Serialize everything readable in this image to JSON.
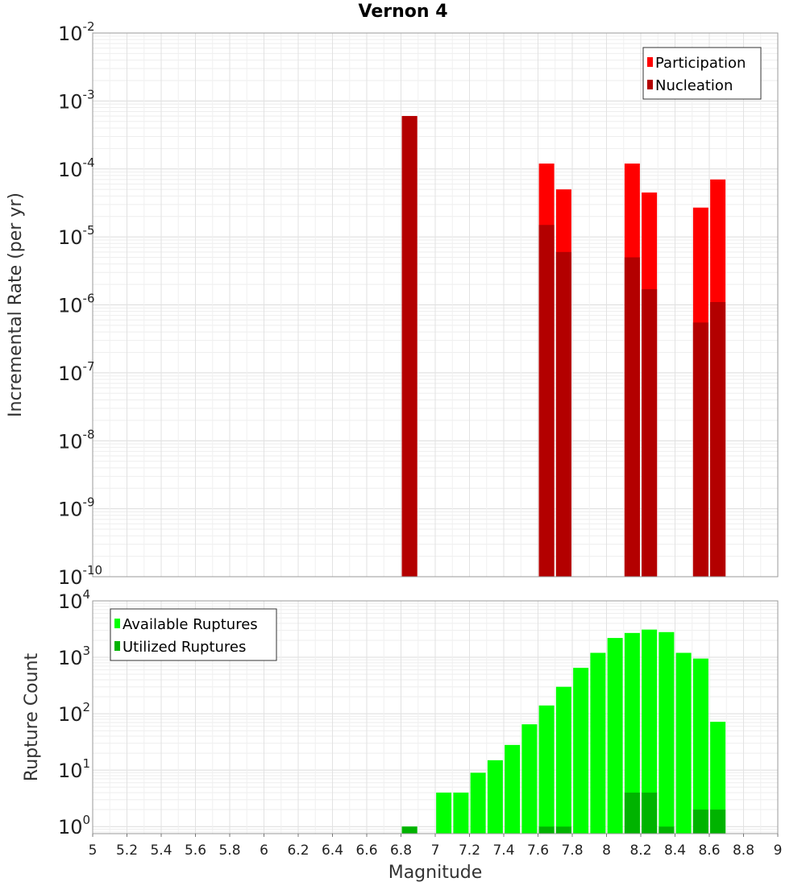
{
  "title": "Vernon 4",
  "chart_data": [
    {
      "type": "bar",
      "panel": "top",
      "title": "Vernon 4",
      "xlabel": "Magnitude",
      "ylabel": "Incremental Rate (per yr)",
      "y_scale": "log",
      "ylim": [
        1e-10,
        0.01
      ],
      "xlim": [
        5,
        9
      ],
      "y_tick_exponents": [
        -10,
        -9,
        -8,
        -7,
        -6,
        -5,
        -4,
        -3,
        -2
      ],
      "grid": true,
      "legend_position": "top-right",
      "legend": [
        "Participation",
        "Nucleation"
      ],
      "colors": {
        "Participation": "#ff0000",
        "Nucleation": "#b30000"
      },
      "x": [
        6.85,
        7.65,
        7.75,
        8.15,
        8.25,
        8.55,
        8.65
      ],
      "series": [
        {
          "name": "Participation",
          "values": [
            0.0006,
            0.00012,
            5e-05,
            0.00012,
            4.5e-05,
            2.7e-05,
            7e-05
          ]
        },
        {
          "name": "Nucleation",
          "values": [
            0.0006,
            1.5e-05,
            6e-06,
            5e-06,
            1.7e-06,
            5.5e-07,
            1.1e-06
          ]
        }
      ]
    },
    {
      "type": "bar",
      "panel": "bottom",
      "xlabel": "Magnitude",
      "ylabel": "Rupture Count",
      "y_scale": "log",
      "ylim": [
        0.75,
        10000
      ],
      "xlim": [
        5,
        9
      ],
      "y_tick_exponents": [
        0,
        1,
        2,
        3,
        4
      ],
      "x_ticks": [
        "5",
        "5.2",
        "5.4",
        "5.6",
        "5.8",
        "6",
        "6.2",
        "6.4",
        "6.6",
        "6.8",
        "7",
        "7.2",
        "7.4",
        "7.6",
        "7.8",
        "8",
        "8.2",
        "8.4",
        "8.6",
        "8.8",
        "9"
      ],
      "grid": true,
      "legend_position": "top-left",
      "legend": [
        "Available Ruptures",
        "Utilized Ruptures"
      ],
      "colors": {
        "Available Ruptures": "#00ff00",
        "Utilized Ruptures": "#00b300"
      },
      "x": [
        6.85,
        7.05,
        7.15,
        7.25,
        7.35,
        7.45,
        7.55,
        7.65,
        7.75,
        7.85,
        7.95,
        8.05,
        8.15,
        8.25,
        8.35,
        8.45,
        8.55,
        8.65
      ],
      "series": [
        {
          "name": "Available Ruptures",
          "values": [
            1,
            4,
            4,
            9,
            15,
            28,
            65,
            140,
            300,
            650,
            1200,
            2200,
            2700,
            3100,
            2800,
            1200,
            950,
            72
          ]
        },
        {
          "name": "Utilized Ruptures",
          "values": [
            1,
            0,
            0,
            0,
            0,
            0,
            0,
            1,
            1,
            0,
            0,
            0,
            4,
            4,
            1,
            0,
            2,
            2
          ]
        }
      ]
    }
  ]
}
